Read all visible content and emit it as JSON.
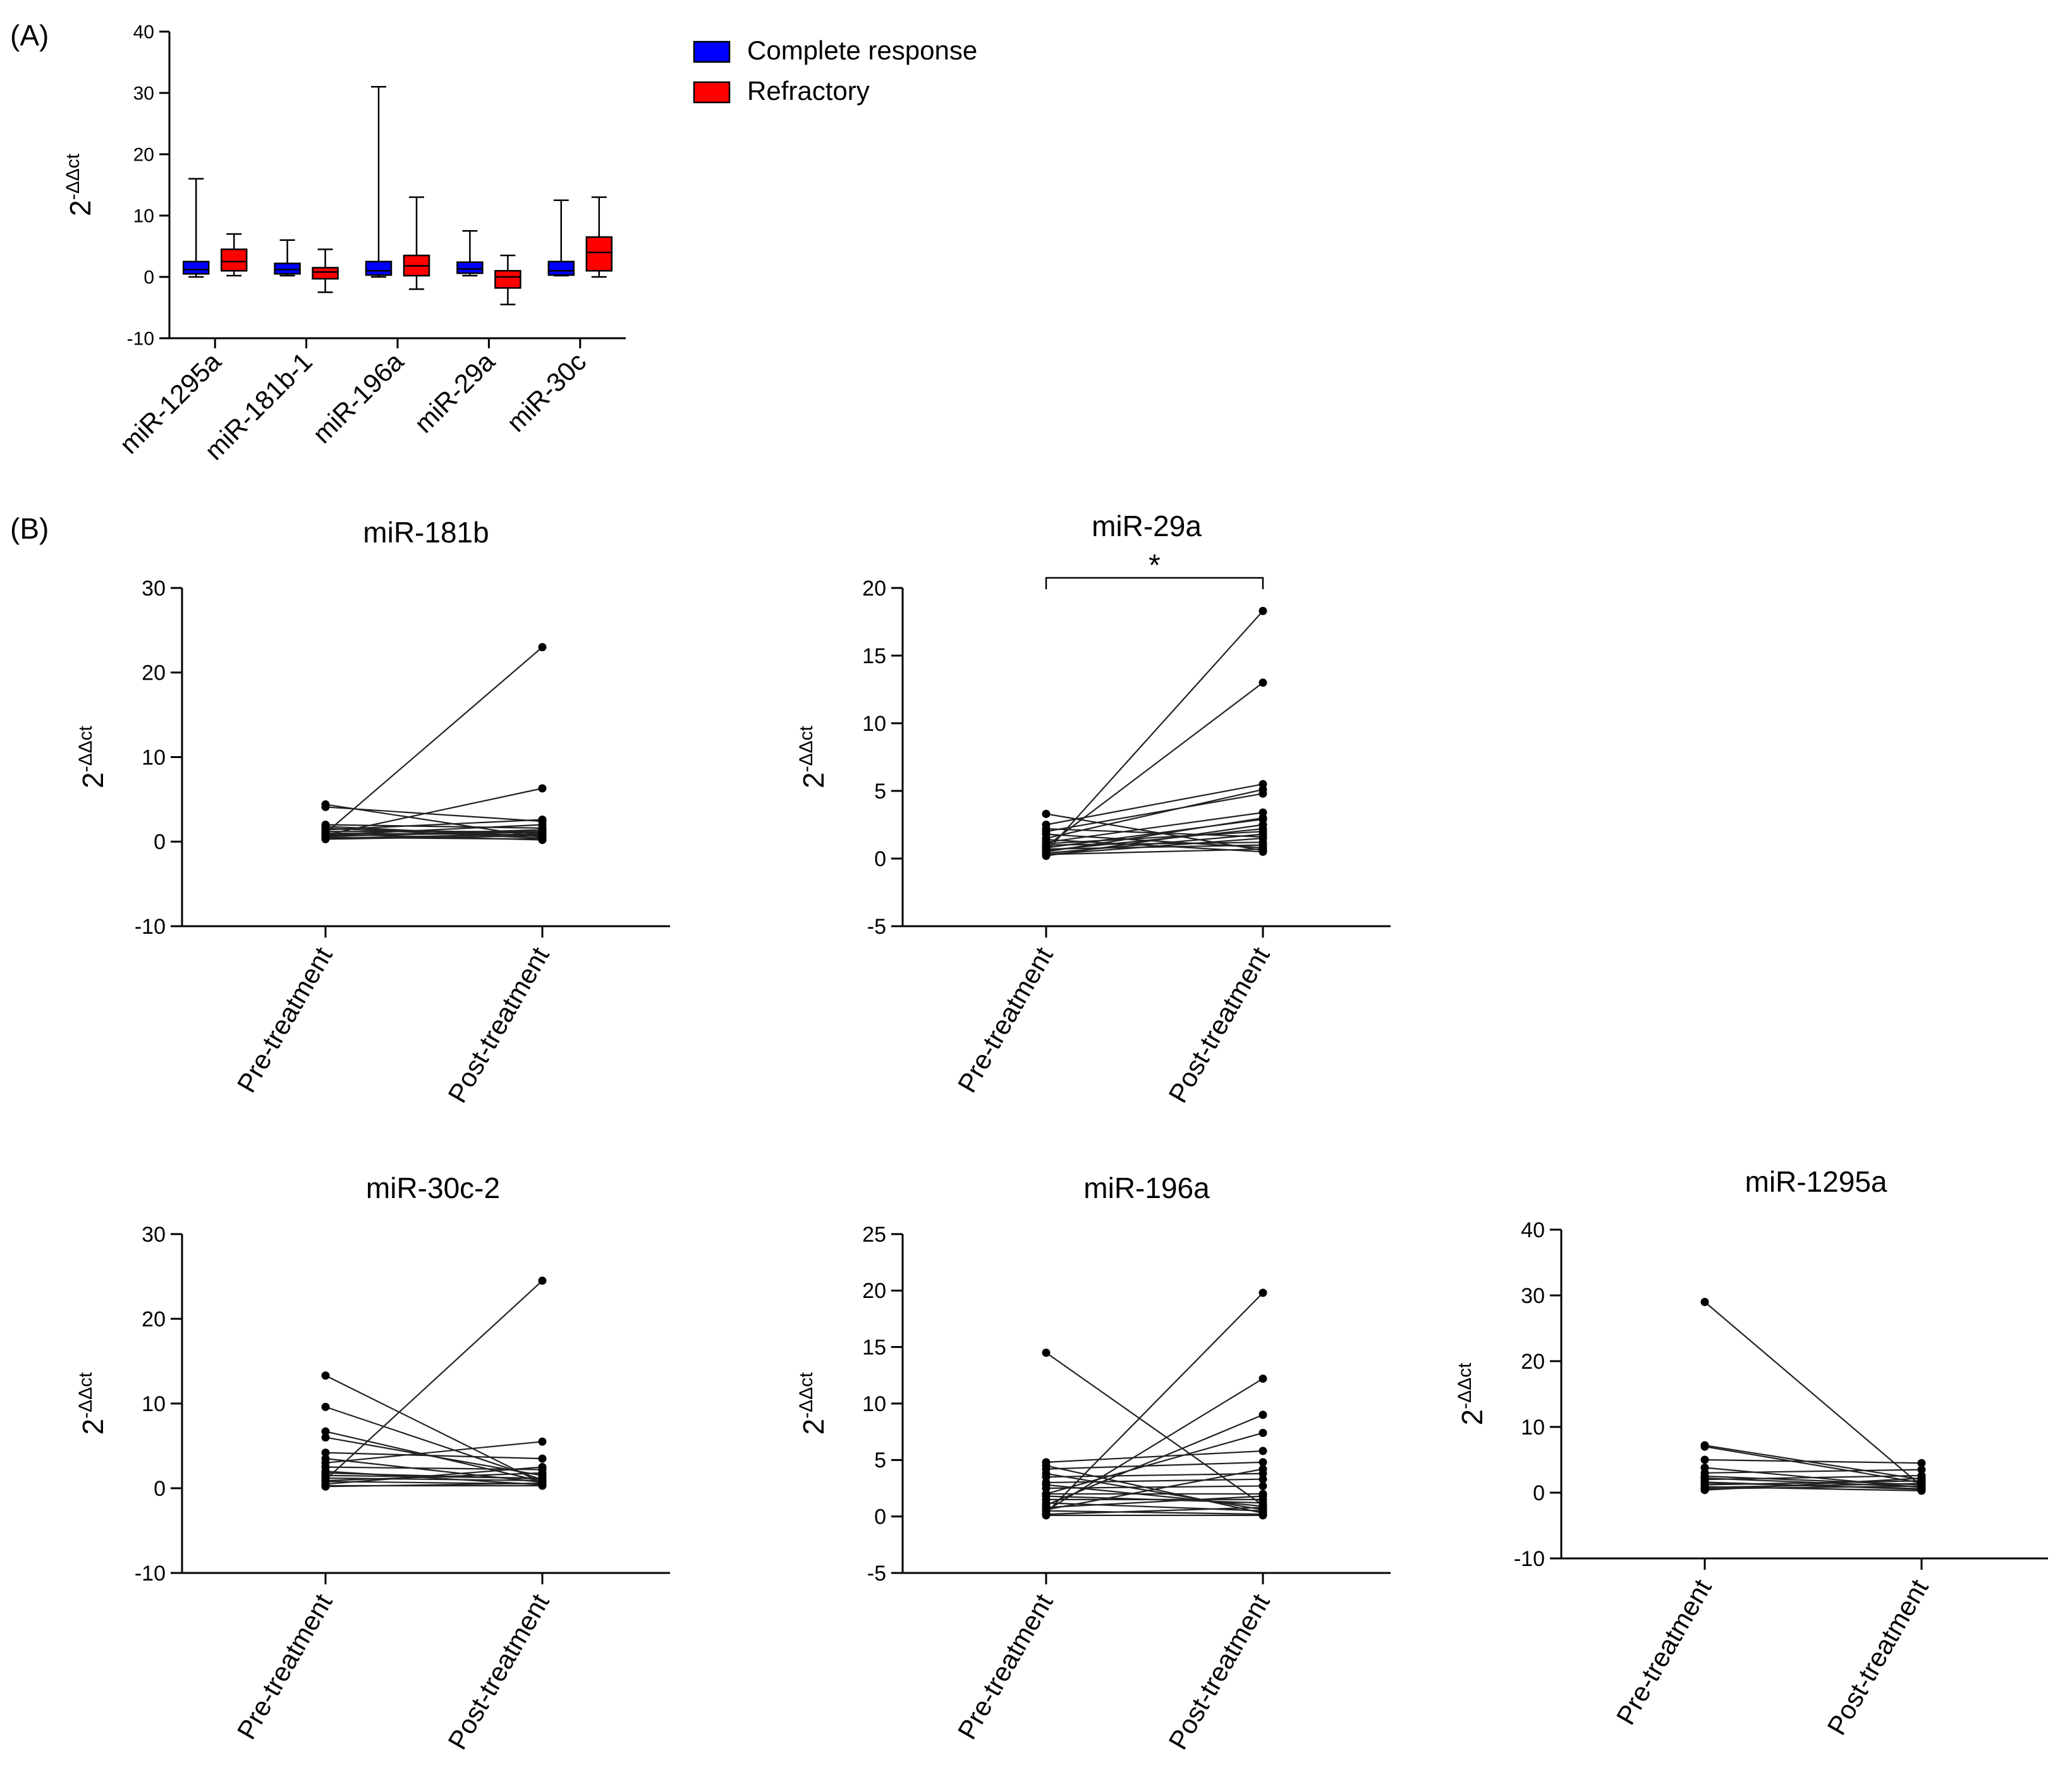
{
  "figure": {
    "panel_a_label": "(A)",
    "panel_b_label": "(B)"
  },
  "chart_data": [
    {
      "id": "boxplot",
      "type": "box",
      "title": "",
      "ylabel_base": "2",
      "ylabel_exp": "-ΔΔct",
      "ylim": [
        -10,
        40
      ],
      "yticks": [
        -10,
        0,
        10,
        20,
        30,
        40
      ],
      "categories": [
        "miR-1295a",
        "miR-181b-1",
        "miR-196a",
        "miR-29a",
        "miR-30c"
      ],
      "legend": {
        "position": "top-right",
        "entries": [
          "Complete response",
          "Refractory"
        ]
      },
      "series": [
        {
          "name": "Complete response",
          "color": "#0000ff",
          "boxes": [
            {
              "min": 0,
              "q1": 0.5,
              "median": 1.2,
              "q3": 2.5,
              "max": 16
            },
            {
              "min": 0.2,
              "q1": 0.5,
              "median": 1.2,
              "q3": 2.2,
              "max": 6
            },
            {
              "min": 0,
              "q1": 0.3,
              "median": 1.0,
              "q3": 2.5,
              "max": 31
            },
            {
              "min": 0.2,
              "q1": 0.6,
              "median": 1.3,
              "q3": 2.4,
              "max": 7.5
            },
            {
              "min": 0.2,
              "q1": 0.3,
              "median": 1.0,
              "q3": 2.5,
              "max": 12.5
            }
          ]
        },
        {
          "name": "Refractory",
          "color": "#ff0000",
          "boxes": [
            {
              "min": 0.2,
              "q1": 1.0,
              "median": 2.5,
              "q3": 4.5,
              "max": 7
            },
            {
              "min": -2.5,
              "q1": -0.3,
              "median": 0.8,
              "q3": 1.5,
              "max": 4.5
            },
            {
              "min": -2,
              "q1": 0.2,
              "median": 1.8,
              "q3": 3.5,
              "max": 13
            },
            {
              "min": -4.5,
              "q1": -1.8,
              "median": 0,
              "q3": 1,
              "max": 3.5
            },
            {
              "min": 0,
              "q1": 1,
              "median": 4,
              "q3": 6.5,
              "max": 13
            }
          ]
        }
      ]
    },
    {
      "id": "p181b",
      "type": "line",
      "title": "miR-181b",
      "ylabel_base": "2",
      "ylabel_exp": "-ΔΔct",
      "ylim": [
        -10,
        30
      ],
      "yticks": [
        -10,
        0,
        10,
        20,
        30
      ],
      "categories": [
        "Pre-treatment",
        "Post-treatment"
      ],
      "significance": "",
      "pairs": [
        [
          4.4,
          0.5
        ],
        [
          4.1,
          2.4
        ],
        [
          1.0,
          23
        ],
        [
          0.8,
          6.3
        ],
        [
          2.0,
          1.6
        ],
        [
          1.8,
          0.6
        ],
        [
          1.4,
          2.6
        ],
        [
          1.2,
          1.2
        ],
        [
          1.0,
          0.8
        ],
        [
          0.8,
          2.0
        ],
        [
          0.6,
          1.4
        ],
        [
          0.5,
          0.3
        ],
        [
          1.5,
          1.0
        ],
        [
          0.4,
          0.9
        ],
        [
          0.9,
          0.2
        ],
        [
          0.7,
          1.1
        ],
        [
          1.6,
          0.4
        ],
        [
          0.3,
          0.7
        ]
      ]
    },
    {
      "id": "p29a",
      "type": "line",
      "title": "miR-29a",
      "ylabel_base": "2",
      "ylabel_exp": "-ΔΔct",
      "ylim": [
        -5,
        20
      ],
      "yticks": [
        -5,
        0,
        5,
        10,
        15,
        20
      ],
      "categories": [
        "Pre-treatment",
        "Post-treatment"
      ],
      "significance": "*",
      "pairs": [
        [
          0.5,
          18.3
        ],
        [
          0.9,
          13
        ],
        [
          3.3,
          0.6
        ],
        [
          2.5,
          5.5
        ],
        [
          2.0,
          4.8
        ],
        [
          1.5,
          5.1
        ],
        [
          1.2,
          3.4
        ],
        [
          0.8,
          2.9
        ],
        [
          0.6,
          2.2
        ],
        [
          0.4,
          1.8
        ],
        [
          0.3,
          1.5
        ],
        [
          1.0,
          1.2
        ],
        [
          1.8,
          0.8
        ],
        [
          0.2,
          2.5
        ],
        [
          0.7,
          1.0
        ],
        [
          1.4,
          0.5
        ],
        [
          0.5,
          3.0
        ],
        [
          2.2,
          1.6
        ],
        [
          0.3,
          0.7
        ],
        [
          1.1,
          2.0
        ]
      ]
    },
    {
      "id": "p30c2",
      "type": "line",
      "title": "miR-30c-2",
      "ylabel_base": "2",
      "ylabel_exp": "-ΔΔct",
      "ylim": [
        -10,
        30
      ],
      "yticks": [
        -10,
        0,
        10,
        20,
        30
      ],
      "categories": [
        "Pre-treatment",
        "Post-treatment"
      ],
      "significance": "",
      "pairs": [
        [
          13.3,
          0.6
        ],
        [
          9.6,
          1.0
        ],
        [
          6.7,
          0.8
        ],
        [
          6.0,
          1.5
        ],
        [
          4.2,
          3.5
        ],
        [
          1.0,
          24.5
        ],
        [
          3.0,
          5.5
        ],
        [
          2.5,
          2.2
        ],
        [
          2.0,
          0.4
        ],
        [
          1.5,
          1.2
        ],
        [
          1.2,
          0.9
        ],
        [
          0.8,
          0.5
        ],
        [
          0.5,
          2.5
        ],
        [
          0.3,
          0.3
        ],
        [
          3.5,
          0.7
        ],
        [
          0.9,
          1.8
        ],
        [
          0.2,
          0.6
        ],
        [
          1.8,
          1.1
        ]
      ]
    },
    {
      "id": "p196a",
      "type": "line",
      "title": "miR-196a",
      "ylabel_base": "2",
      "ylabel_exp": "-ΔΔct",
      "ylim": [
        -5,
        25
      ],
      "yticks": [
        -5,
        0,
        5,
        10,
        15,
        20,
        25
      ],
      "categories": [
        "Pre-treatment",
        "Post-treatment"
      ],
      "significance": "",
      "pairs": [
        [
          14.5,
          1.0
        ],
        [
          0.3,
          19.8
        ],
        [
          0.5,
          12.2
        ],
        [
          1.0,
          9.0
        ],
        [
          2.0,
          7.4
        ],
        [
          4.8,
          5.8
        ],
        [
          4.2,
          4.8
        ],
        [
          3.5,
          3.8
        ],
        [
          3.0,
          3.3
        ],
        [
          2.5,
          2.7
        ],
        [
          2.0,
          2.0
        ],
        [
          1.5,
          1.5
        ],
        [
          1.2,
          0.5
        ],
        [
          0.8,
          1.8
        ],
        [
          0.5,
          0.2
        ],
        [
          0.2,
          0.8
        ],
        [
          0.1,
          0.1
        ],
        [
          4.5,
          0.3
        ],
        [
          3.8,
          0.6
        ],
        [
          1.8,
          1.2
        ],
        [
          0.6,
          4.2
        ],
        [
          2.8,
          0.9
        ]
      ]
    },
    {
      "id": "p1295a",
      "type": "line",
      "title": "miR-1295a",
      "ylabel_base": "2",
      "ylabel_exp": "-ΔΔct",
      "ylim": [
        -10,
        40
      ],
      "yticks": [
        -10,
        0,
        10,
        20,
        30,
        40
      ],
      "categories": [
        "Pre-treatment",
        "Post-treatment"
      ],
      "significance": "",
      "pairs": [
        [
          29,
          1.0
        ],
        [
          7.2,
          2.0
        ],
        [
          7.0,
          1.5
        ],
        [
          5.0,
          4.5
        ],
        [
          3.8,
          0.8
        ],
        [
          3.0,
          3.5
        ],
        [
          2.5,
          1.2
        ],
        [
          2.0,
          2.6
        ],
        [
          1.6,
          0.5
        ],
        [
          1.2,
          1.8
        ],
        [
          0.9,
          0.3
        ],
        [
          0.6,
          1.0
        ],
        [
          0.4,
          2.2
        ],
        [
          1.5,
          0.6
        ],
        [
          2.2,
          0.9
        ],
        [
          0.8,
          1.4
        ]
      ]
    }
  ]
}
